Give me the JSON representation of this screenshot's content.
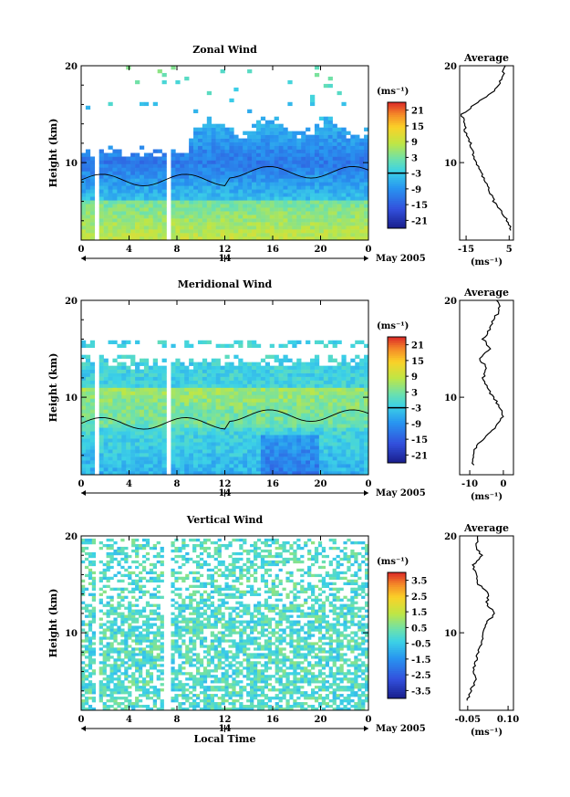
{
  "chart_data": [
    {
      "type": "heatmap",
      "title": "Zonal Wind",
      "xlabel": "",
      "ylabel": "Height (km)",
      "x_ticks": [
        "0",
        "4",
        "8",
        "12",
        "16",
        "20",
        "0"
      ],
      "y_ticks": [
        "10",
        "20"
      ],
      "ylim": [
        2,
        20
      ],
      "date_marker": "14",
      "date_label": "May 2005",
      "colorbar": {
        "unit": "(ms⁻¹)",
        "ticks": [
          "21",
          "15",
          "9",
          "3",
          "-3",
          "-9",
          "-15",
          "-21"
        ],
        "range": [
          -24,
          24
        ],
        "zero_line": 0
      },
      "average": {
        "title": "Average",
        "unit": "(ms⁻¹)",
        "x_ticks": [
          "-15",
          "5"
        ],
        "xlim": [
          -18,
          7
        ],
        "profile": [
          [
            3,
            6
          ],
          [
            4,
            4
          ],
          [
            5,
            1
          ],
          [
            6,
            -2
          ],
          [
            7,
            -4
          ],
          [
            8,
            -6
          ],
          [
            9,
            -8
          ],
          [
            10,
            -10
          ],
          [
            11,
            -12
          ],
          [
            12,
            -13
          ],
          [
            13,
            -15
          ],
          [
            14,
            -16
          ],
          [
            15,
            -17
          ],
          [
            16,
            -11
          ],
          [
            17,
            -4
          ],
          [
            18,
            0
          ],
          [
            19,
            2
          ],
          [
            20,
            3
          ]
        ]
      }
    },
    {
      "type": "heatmap",
      "title": "Meridional Wind",
      "xlabel": "",
      "ylabel": "Height (km)",
      "x_ticks": [
        "0",
        "4",
        "8",
        "12",
        "16",
        "20",
        "0"
      ],
      "y_ticks": [
        "10",
        "20"
      ],
      "ylim": [
        2,
        20
      ],
      "date_marker": "14",
      "date_label": "May 2005",
      "colorbar": {
        "unit": "(ms⁻¹)",
        "ticks": [
          "21",
          "15",
          "9",
          "3",
          "-3",
          "-9",
          "-15",
          "-21"
        ],
        "range": [
          -24,
          24
        ],
        "zero_line": 0
      },
      "average": {
        "title": "Average",
        "unit": "(ms⁻¹)",
        "x_ticks": [
          "-10",
          "0"
        ],
        "xlim": [
          -13,
          3
        ],
        "profile": [
          [
            3,
            -9
          ],
          [
            4,
            -9
          ],
          [
            5,
            -8
          ],
          [
            6,
            -5
          ],
          [
            7,
            -2
          ],
          [
            8,
            0
          ],
          [
            9,
            -1
          ],
          [
            10,
            -3
          ],
          [
            11,
            -5
          ],
          [
            12,
            -6
          ],
          [
            13,
            -5
          ],
          [
            14,
            -7
          ],
          [
            15,
            -4
          ],
          [
            16,
            -6
          ],
          [
            17,
            -4
          ],
          [
            18,
            -3
          ],
          [
            19,
            -1
          ],
          [
            20,
            -2
          ]
        ]
      }
    },
    {
      "type": "heatmap",
      "title": "Vertical Wind",
      "xlabel": "Local Time",
      "ylabel": "Height (km)",
      "x_ticks": [
        "0",
        "4",
        "8",
        "12",
        "16",
        "20",
        "0"
      ],
      "y_ticks": [
        "10",
        "20"
      ],
      "ylim": [
        2,
        20
      ],
      "date_marker": "14",
      "date_label": "May 2005",
      "colorbar": {
        "unit": "(ms⁻¹)",
        "ticks": [
          "3.5",
          "2.5",
          "1.5",
          "0.5",
          "-0.5",
          "-1.5",
          "-2.5",
          "-3.5"
        ],
        "range": [
          -4,
          4
        ]
      },
      "average": {
        "title": "Average",
        "unit": "(ms⁻¹)",
        "x_ticks": [
          "-0.05",
          "0.10"
        ],
        "xlim": [
          -0.08,
          0.12
        ],
        "profile": [
          [
            3,
            -0.05
          ],
          [
            4,
            -0.04
          ],
          [
            5,
            -0.02
          ],
          [
            6,
            -0.03
          ],
          [
            7,
            -0.02
          ],
          [
            8,
            -0.01
          ],
          [
            9,
            0.0
          ],
          [
            10,
            0.01
          ],
          [
            11,
            0.02
          ],
          [
            12,
            0.05
          ],
          [
            13,
            0.02
          ],
          [
            14,
            0.03
          ],
          [
            15,
            -0.01
          ],
          [
            16,
            -0.02
          ],
          [
            17,
            -0.03
          ],
          [
            18,
            0.0
          ],
          [
            19,
            -0.02
          ],
          [
            20,
            -0.01
          ]
        ]
      }
    }
  ]
}
